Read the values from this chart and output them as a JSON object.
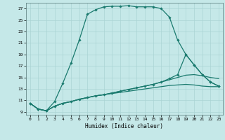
{
  "xlabel": "Humidex (Indice chaleur)",
  "background_color": "#c5e8e8",
  "grid_color": "#aad4d4",
  "line_color": "#1a7a6e",
  "xlim": [
    -0.5,
    23.5
  ],
  "ylim": [
    8.5,
    28.0
  ],
  "xticks": [
    0,
    1,
    2,
    3,
    4,
    5,
    6,
    7,
    8,
    9,
    10,
    11,
    12,
    13,
    14,
    15,
    16,
    17,
    18,
    19,
    20,
    21,
    22,
    23
  ],
  "yticks": [
    9,
    11,
    13,
    15,
    17,
    19,
    21,
    23,
    25,
    27
  ],
  "s1_x": [
    0,
    1,
    2,
    3,
    4,
    5,
    6,
    7,
    8,
    9,
    10,
    11,
    12,
    13,
    14,
    15,
    16,
    17,
    18,
    19,
    20,
    21,
    22,
    23
  ],
  "s1_y": [
    10.5,
    9.5,
    9.2,
    10.8,
    14.0,
    17.5,
    21.5,
    26.0,
    26.8,
    27.3,
    27.4,
    27.4,
    27.5,
    27.3,
    27.3,
    27.3,
    27.0,
    25.5,
    21.5,
    19.0,
    17.2,
    15.5,
    14.2,
    13.5
  ],
  "s2_x": [
    0,
    1,
    2,
    3,
    4,
    5,
    6,
    7,
    8,
    9,
    10,
    11,
    12,
    13,
    14,
    15,
    16,
    17,
    18,
    19,
    20,
    21,
    22,
    23
  ],
  "s2_y": [
    10.5,
    9.5,
    9.2,
    10.0,
    10.5,
    10.8,
    11.2,
    11.5,
    11.8,
    12.0,
    12.2,
    12.4,
    12.6,
    12.8,
    13.0,
    13.2,
    13.4,
    13.6,
    13.7,
    13.8,
    13.7,
    13.5,
    13.4,
    13.4
  ],
  "s3_x": [
    0,
    1,
    2,
    3,
    4,
    5,
    6,
    7,
    8,
    9,
    10,
    11,
    12,
    13,
    14,
    15,
    16,
    17,
    18,
    19,
    20,
    21,
    22,
    23
  ],
  "s3_y": [
    10.5,
    9.5,
    9.2,
    10.0,
    10.5,
    10.8,
    11.2,
    11.5,
    11.8,
    12.0,
    12.3,
    12.6,
    12.9,
    13.2,
    13.5,
    13.8,
    14.2,
    14.6,
    15.0,
    15.4,
    15.5,
    15.3,
    15.0,
    14.8
  ],
  "s4_x": [
    0,
    1,
    2,
    3,
    4,
    5,
    6,
    7,
    8,
    9,
    10,
    11,
    12,
    13,
    14,
    15,
    16,
    17,
    18,
    19,
    20,
    21,
    22,
    23
  ],
  "s4_y": [
    10.5,
    9.5,
    9.2,
    10.0,
    10.5,
    10.8,
    11.2,
    11.5,
    11.8,
    12.0,
    12.3,
    12.6,
    12.9,
    13.2,
    13.5,
    13.8,
    14.2,
    14.8,
    15.5,
    19.0,
    17.2,
    15.5,
    14.2,
    13.5
  ]
}
